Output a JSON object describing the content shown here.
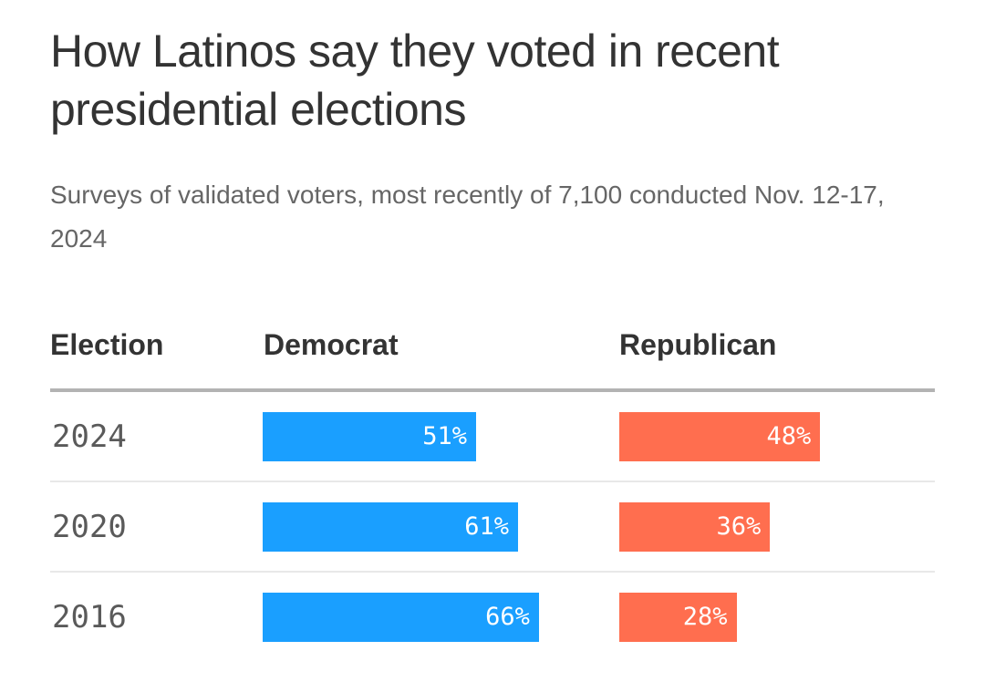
{
  "title": "How Latinos say they voted in recent presidential elections",
  "subtitle": "Surveys of validated voters, most recently of 7,100 conducted Nov. 12-17, 2024",
  "chart_data": {
    "type": "table",
    "columns": [
      "Election",
      "Democrat",
      "Republican"
    ],
    "colors": {
      "Democrat": "#1a9fff",
      "Republican": "#ff6e4f"
    },
    "rows": [
      {
        "year": "2024",
        "dem": 51,
        "rep": 48,
        "dem_label": "51%",
        "rep_label": "48%"
      },
      {
        "year": "2020",
        "dem": 61,
        "rep": 36,
        "dem_label": "61%",
        "rep_label": "36%"
      },
      {
        "year": "2016",
        "dem": 66,
        "rep": 28,
        "dem_label": "66%",
        "rep_label": "28%"
      }
    ]
  }
}
